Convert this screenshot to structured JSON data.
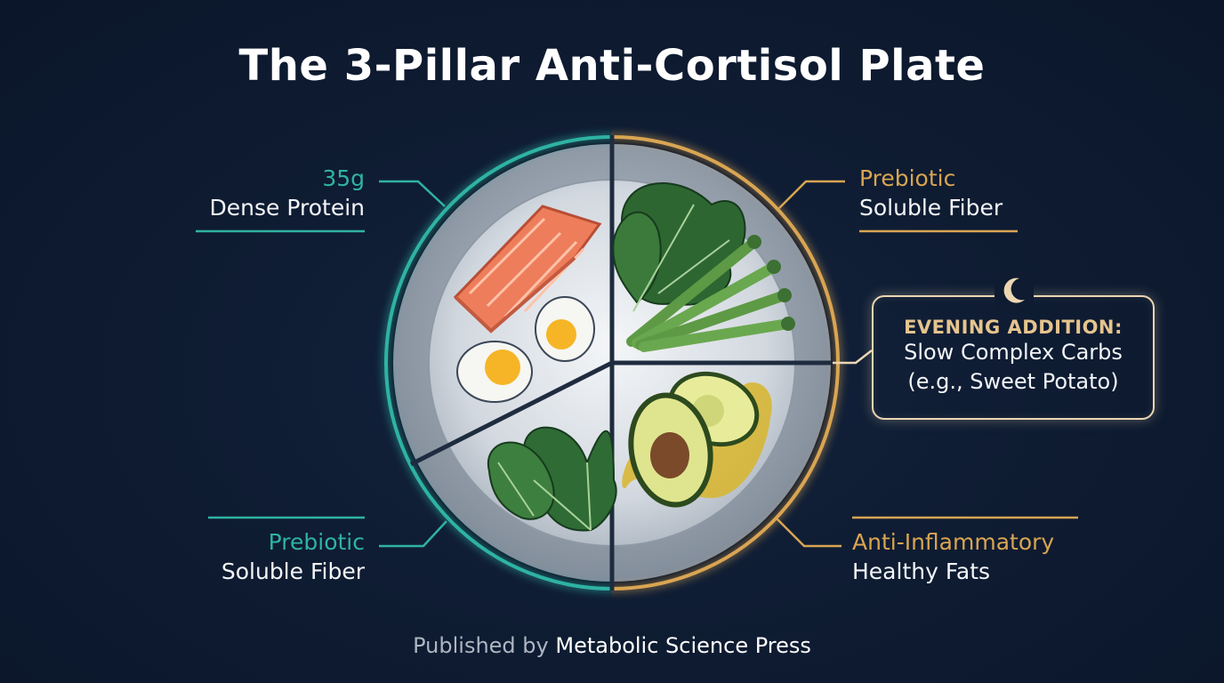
{
  "title": "The 3-Pillar Anti-Cortisol Plate",
  "labels": {
    "top_left": {
      "key": "35g",
      "value": "Dense Protein"
    },
    "top_right": {
      "key": "Prebiotic",
      "value": "Soluble Fiber"
    },
    "bottom_left": {
      "key": "Prebiotic",
      "value": "Soluble Fiber"
    },
    "bottom_right": {
      "key": "Anti-Inflammatory",
      "value": "Healthy Fats"
    }
  },
  "evening": {
    "heading": "EVENING ADDITION:",
    "line1": "Slow Complex Carbs",
    "line2": "(e.g., Sweet Potato)",
    "icon": "crescent-moon-icon"
  },
  "footer": {
    "prefix": "Published by",
    "publisher": "Metabolic Science Press"
  },
  "colors": {
    "background": "#0e1b31",
    "teal": "#2fb3a3",
    "gold": "#d9a552",
    "evening_border": "#ecd6b2"
  },
  "foods": [
    "salmon",
    "boiled-eggs",
    "spinach",
    "kale",
    "asparagus",
    "avocado",
    "olive-oil"
  ]
}
